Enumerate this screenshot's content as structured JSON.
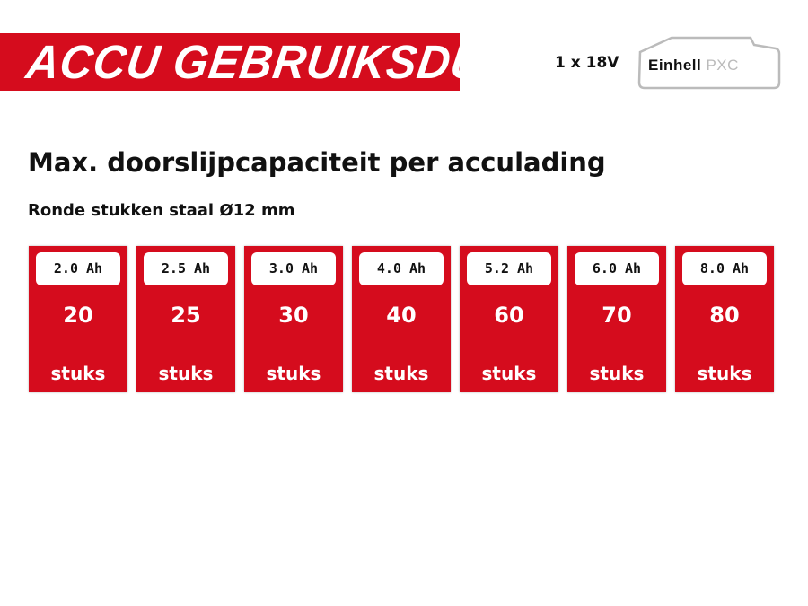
{
  "header": {
    "title": "ACCU GEBRUIKSDUUR",
    "battery_count": "1 x 18V",
    "logo": {
      "brand": "Einhell",
      "system": "PXC"
    }
  },
  "main": {
    "title": "Max. doorslijpcapaciteit per acculading",
    "subtitle": "Ronde stukken staal Ø12 mm",
    "unit": "stuks",
    "cards": [
      {
        "capacity": "2.0 Ah",
        "value": "20"
      },
      {
        "capacity": "2.5 Ah",
        "value": "25"
      },
      {
        "capacity": "3.0 Ah",
        "value": "30"
      },
      {
        "capacity": "4.0 Ah",
        "value": "40"
      },
      {
        "capacity": "5.2 Ah",
        "value": "60"
      },
      {
        "capacity": "6.0 Ah",
        "value": "70"
      },
      {
        "capacity": "8.0 Ah",
        "value": "80"
      }
    ]
  },
  "colors": {
    "accent": "#d50c1d"
  }
}
